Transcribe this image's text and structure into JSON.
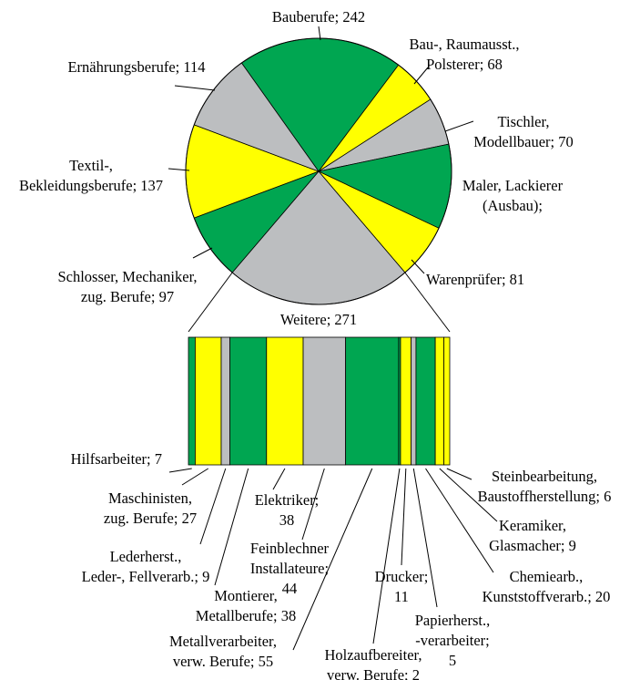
{
  "chart_data": [
    {
      "type": "pie",
      "labels": [
        [
          "Bauberufe; 242"
        ],
        [
          "Bau-, Raumausst.,",
          "Polsterer; 68"
        ],
        [
          "Tischler,",
          "Modellbauer; 70"
        ],
        [
          "Maler, Lackierer",
          "(Ausbau);"
        ],
        [
          "Warenprüfer; 81"
        ],
        [
          "Weitere; 271"
        ],
        [
          "Schlosser, Mechaniker,",
          "zug. Berufe; 97"
        ],
        [
          "Textil-,",
          "Bekleidungsberufe; 137"
        ],
        [
          "Ernährungsberufe; 114"
        ]
      ],
      "values": [
        242,
        68,
        70,
        124,
        81,
        271,
        97,
        137,
        114
      ],
      "colors": [
        "#00a651",
        "#ffff00",
        "#bcbec0",
        "#00a651",
        "#ffff00",
        "#bcbec0",
        "#00a651",
        "#ffff00",
        "#bcbec0"
      ]
    },
    {
      "type": "bar",
      "labels": [
        [
          "Hilfsarbeiter; 7"
        ],
        [
          "Maschinisten,",
          "zug. Berufe; 27"
        ],
        [
          "Lederherst.,",
          "Leder-, Fellverarb.; 9"
        ],
        [
          "Montierer,",
          "Metallberufe; 38"
        ],
        [
          "Elektriker;",
          "38"
        ],
        [
          "Feinblechner",
          "Installateure;",
          "44"
        ],
        [
          "Metallverarbeiter,",
          "verw. Berufe; 55"
        ],
        [
          "Holzaufbereiter,",
          "verw. Berufe; 2"
        ],
        [
          "Drucker;",
          "11"
        ],
        [
          "Papierherst.,",
          "-verarbeiter;",
          "5"
        ],
        [
          "Chemiearb.,",
          "Kunststoffverarb.; 20"
        ],
        [
          "Keramiker,",
          "Glasmacher; 9"
        ],
        [
          "Steinbearbeitung,",
          "Baustoffherstellung; 6"
        ]
      ],
      "values": [
        7,
        27,
        9,
        38,
        38,
        44,
        55,
        2,
        11,
        5,
        20,
        9,
        6
      ],
      "colors": [
        "#00a651",
        "#ffff00",
        "#bcbec0",
        "#00a651",
        "#ffff00",
        "#bcbec0",
        "#00a651",
        "#00a651",
        "#ffff00",
        "#bcbec0",
        "#00a651",
        "#ffff00",
        "#ffff00"
      ]
    }
  ]
}
